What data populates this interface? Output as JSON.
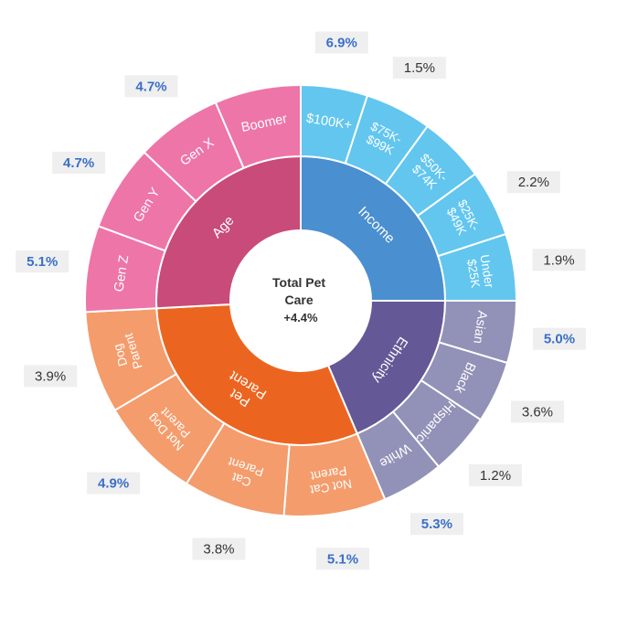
{
  "chart_data": {
    "type": "sunburst",
    "center": {
      "lines": [
        "Total Pet",
        "Care",
        "+4.4%"
      ]
    },
    "colors": {
      "highlight_text": "#3a6fc9",
      "normal_text": "#333333",
      "label_box": "#efefef"
    },
    "groups": [
      {
        "name": "Income",
        "color": "#4a8fd0",
        "children": [
          {
            "lines": [
              "$100K+"
            ],
            "value": "6.9%",
            "highlight": true,
            "color": "#62c6ef"
          },
          {
            "lines": [
              "$75K-",
              "$99K"
            ],
            "value": "1.5%",
            "highlight": false,
            "color": "#62c6ef"
          },
          {
            "lines": [
              "$50K-",
              "$74K"
            ],
            "value": "",
            "highlight": false,
            "color": "#62c6ef"
          },
          {
            "lines": [
              "$25K-",
              "$49K"
            ],
            "value": "2.2%",
            "highlight": false,
            "color": "#62c6ef"
          },
          {
            "lines": [
              "Under",
              "$25K"
            ],
            "value": "1.9%",
            "highlight": false,
            "color": "#62c6ef"
          }
        ]
      },
      {
        "name": "Ethnicity",
        "color": "#655897",
        "children": [
          {
            "lines": [
              "Asian"
            ],
            "value": "5.0%",
            "highlight": true,
            "color": "#9291b7"
          },
          {
            "lines": [
              "Black"
            ],
            "value": "3.6%",
            "highlight": false,
            "color": "#9291b7"
          },
          {
            "lines": [
              "Hispanic"
            ],
            "value": "1.2%",
            "highlight": false,
            "color": "#9291b7"
          },
          {
            "lines": [
              "White"
            ],
            "value": "5.3%",
            "highlight": true,
            "color": "#9291b7"
          }
        ]
      },
      {
        "name": "Pet Parent",
        "lines": [
          "Pet",
          "Parent"
        ],
        "color": "#ec6520",
        "children": [
          {
            "lines": [
              "Not Cat",
              "Parent"
            ],
            "value": "5.1%",
            "highlight": true,
            "color": "#f49c6c"
          },
          {
            "lines": [
              "Cat",
              "Parent"
            ],
            "value": "3.8%",
            "highlight": false,
            "color": "#f49c6c"
          },
          {
            "lines": [
              "Not Dog",
              "Parent"
            ],
            "value": "4.9%",
            "highlight": true,
            "color": "#f49c6c"
          },
          {
            "lines": [
              "Dog",
              "Parent"
            ],
            "value": "3.9%",
            "highlight": false,
            "color": "#f49c6c"
          }
        ]
      },
      {
        "name": "Age",
        "color": "#c94b7a",
        "children": [
          {
            "lines": [
              "Gen Z"
            ],
            "value": "5.1%",
            "highlight": true,
            "color": "#ee75a8"
          },
          {
            "lines": [
              "Gen Y"
            ],
            "value": "4.7%",
            "highlight": true,
            "color": "#ee75a8"
          },
          {
            "lines": [
              "Gen X"
            ],
            "value": "4.7%",
            "highlight": true,
            "color": "#ee75a8"
          },
          {
            "lines": [
              "Boomer"
            ],
            "value": "",
            "highlight": false,
            "color": "#ee75a8"
          }
        ]
      }
    ]
  }
}
